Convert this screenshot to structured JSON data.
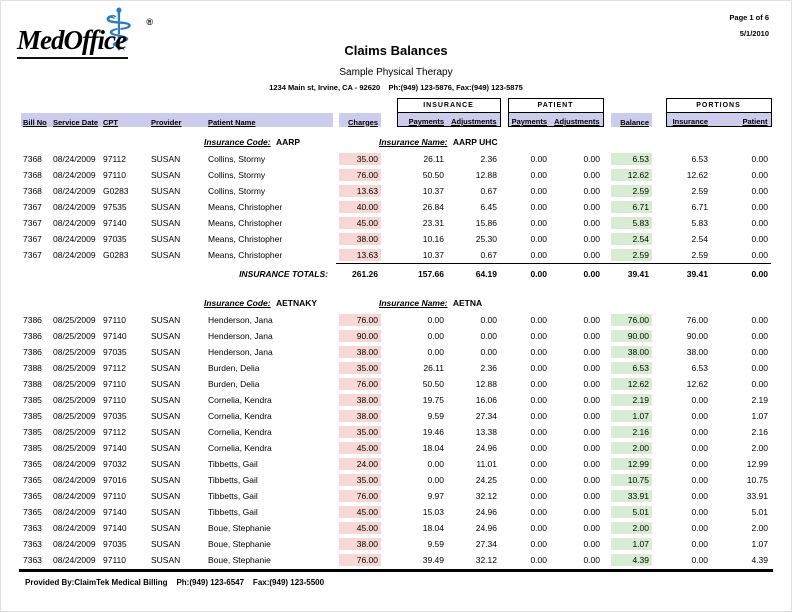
{
  "page": {
    "page_label": "Page 1 of 6",
    "date": "5/1/2010"
  },
  "header": {
    "logo_text": "MedOffice",
    "logo_reg": "®",
    "title": "Claims Balances",
    "practice": "Sample Physical Therapy",
    "address": "1234 Main st, Irvine, CA - 92620    Ph:(949) 123-5876, Fax:(949) 123-5875"
  },
  "table": {
    "groups": {
      "insurance": "INSURANCE",
      "patient": "PATIENT",
      "portions": "PORTIONS"
    },
    "columns": {
      "bill": "Bill No",
      "date": "Service Date",
      "cpt": "CPT",
      "provider": "Provider",
      "patient": "Patient Name",
      "charges": "Charges",
      "ins_pay": "Payments",
      "ins_adj": "Adjustments",
      "pat_pay": "Payments",
      "pat_adj": "Adjustments",
      "balance": "Balance",
      "ins_portion": "Insurance",
      "pat_portion": "Patient"
    },
    "sections": [
      {
        "code_label": "Insurance Code:",
        "code": "AARP",
        "name_label": "Insurance Name:",
        "name": "AARP UHC",
        "rows": [
          {
            "bill": "7368",
            "date": "08/24/2009",
            "cpt": "97112",
            "provider": "SUSAN",
            "patient": "Collins, Stormy",
            "charges": "35.00",
            "ins_pay": "26.11",
            "ins_adj": "2.36",
            "pat_pay": "0.00",
            "pat_adj": "0.00",
            "balance": "6.53",
            "ins_portion": "6.53",
            "pat_portion": "0.00"
          },
          {
            "bill": "7368",
            "date": "08/24/2009",
            "cpt": "97110",
            "provider": "SUSAN",
            "patient": "Collins, Stormy",
            "charges": "76.00",
            "ins_pay": "50.50",
            "ins_adj": "12.88",
            "pat_pay": "0.00",
            "pat_adj": "0.00",
            "balance": "12.62",
            "ins_portion": "12.62",
            "pat_portion": "0.00"
          },
          {
            "bill": "7368",
            "date": "08/24/2009",
            "cpt": "G0283",
            "provider": "SUSAN",
            "patient": "Collins, Stormy",
            "charges": "13.63",
            "ins_pay": "10.37",
            "ins_adj": "0.67",
            "pat_pay": "0.00",
            "pat_adj": "0.00",
            "balance": "2.59",
            "ins_portion": "2.59",
            "pat_portion": "0.00"
          },
          {
            "bill": "7367",
            "date": "08/24/2009",
            "cpt": "97535",
            "provider": "SUSAN",
            "patient": "Means, Christopher",
            "charges": "40.00",
            "ins_pay": "26.84",
            "ins_adj": "6.45",
            "pat_pay": "0.00",
            "pat_adj": "0.00",
            "balance": "6.71",
            "ins_portion": "6.71",
            "pat_portion": "0.00"
          },
          {
            "bill": "7367",
            "date": "08/24/2009",
            "cpt": "97140",
            "provider": "SUSAN",
            "patient": "Means, Christopher",
            "charges": "45.00",
            "ins_pay": "23.31",
            "ins_adj": "15.86",
            "pat_pay": "0.00",
            "pat_adj": "0.00",
            "balance": "5.83",
            "ins_portion": "5.83",
            "pat_portion": "0.00"
          },
          {
            "bill": "7367",
            "date": "08/24/2009",
            "cpt": "97035",
            "provider": "SUSAN",
            "patient": "Means, Christopher",
            "charges": "38.00",
            "ins_pay": "10.16",
            "ins_adj": "25.30",
            "pat_pay": "0.00",
            "pat_adj": "0.00",
            "balance": "2.54",
            "ins_portion": "2.54",
            "pat_portion": "0.00"
          },
          {
            "bill": "7367",
            "date": "08/24/2009",
            "cpt": "G0283",
            "provider": "SUSAN",
            "patient": "Means, Christopher",
            "charges": "13.63",
            "ins_pay": "10.37",
            "ins_adj": "0.67",
            "pat_pay": "0.00",
            "pat_adj": "0.00",
            "balance": "2.59",
            "ins_portion": "2.59",
            "pat_portion": "0.00"
          }
        ],
        "totals_label": "INSURANCE TOTALS:",
        "totals": {
          "charges": "261.26",
          "ins_pay": "157.66",
          "ins_adj": "64.19",
          "pat_pay": "0.00",
          "pat_adj": "0.00",
          "balance": "39.41",
          "ins_portion": "39.41",
          "pat_portion": "0.00"
        }
      },
      {
        "code_label": "Insurance Code:",
        "code": "AETNAKY",
        "name_label": "Insurance Name:",
        "name": "AETNA",
        "rows": [
          {
            "bill": "7386",
            "date": "08/25/2009",
            "cpt": "97110",
            "provider": "SUSAN",
            "patient": "Henderson, Jana",
            "charges": "76.00",
            "ins_pay": "0.00",
            "ins_adj": "0.00",
            "pat_pay": "0.00",
            "pat_adj": "0.00",
            "balance": "76.00",
            "ins_portion": "76.00",
            "pat_portion": "0.00"
          },
          {
            "bill": "7386",
            "date": "08/25/2009",
            "cpt": "97140",
            "provider": "SUSAN",
            "patient": "Henderson, Jana",
            "charges": "90.00",
            "ins_pay": "0.00",
            "ins_adj": "0.00",
            "pat_pay": "0.00",
            "pat_adj": "0.00",
            "balance": "90.00",
            "ins_portion": "90.00",
            "pat_portion": "0.00"
          },
          {
            "bill": "7386",
            "date": "08/25/2009",
            "cpt": "97035",
            "provider": "SUSAN",
            "patient": "Henderson, Jana",
            "charges": "38.00",
            "ins_pay": "0.00",
            "ins_adj": "0.00",
            "pat_pay": "0.00",
            "pat_adj": "0.00",
            "balance": "38.00",
            "ins_portion": "38.00",
            "pat_portion": "0.00"
          },
          {
            "bill": "7388",
            "date": "08/25/2009",
            "cpt": "97112",
            "provider": "SUSAN",
            "patient": "Burden, Delia",
            "charges": "35.00",
            "ins_pay": "26.11",
            "ins_adj": "2.36",
            "pat_pay": "0.00",
            "pat_adj": "0.00",
            "balance": "6.53",
            "ins_portion": "6.53",
            "pat_portion": "0.00"
          },
          {
            "bill": "7388",
            "date": "08/25/2009",
            "cpt": "97110",
            "provider": "SUSAN",
            "patient": "Burden, Delia",
            "charges": "76.00",
            "ins_pay": "50.50",
            "ins_adj": "12.88",
            "pat_pay": "0.00",
            "pat_adj": "0.00",
            "balance": "12.62",
            "ins_portion": "12.62",
            "pat_portion": "0.00"
          },
          {
            "bill": "7385",
            "date": "08/25/2009",
            "cpt": "97110",
            "provider": "SUSAN",
            "patient": "Cornelia, Kendra",
            "charges": "38.00",
            "ins_pay": "19.75",
            "ins_adj": "16.06",
            "pat_pay": "0.00",
            "pat_adj": "0.00",
            "balance": "2.19",
            "ins_portion": "0.00",
            "pat_portion": "2.19"
          },
          {
            "bill": "7385",
            "date": "08/25/2009",
            "cpt": "97035",
            "provider": "SUSAN",
            "patient": "Cornelia, Kendra",
            "charges": "38.00",
            "ins_pay": "9.59",
            "ins_adj": "27.34",
            "pat_pay": "0.00",
            "pat_adj": "0.00",
            "balance": "1.07",
            "ins_portion": "0.00",
            "pat_portion": "1.07"
          },
          {
            "bill": "7385",
            "date": "08/25/2009",
            "cpt": "97112",
            "provider": "SUSAN",
            "patient": "Cornelia, Kendra",
            "charges": "35.00",
            "ins_pay": "19.46",
            "ins_adj": "13.38",
            "pat_pay": "0.00",
            "pat_adj": "0.00",
            "balance": "2.16",
            "ins_portion": "0.00",
            "pat_portion": "2.16"
          },
          {
            "bill": "7385",
            "date": "08/25/2009",
            "cpt": "97140",
            "provider": "SUSAN",
            "patient": "Cornelia, Kendra",
            "charges": "45.00",
            "ins_pay": "18.04",
            "ins_adj": "24.96",
            "pat_pay": "0.00",
            "pat_adj": "0.00",
            "balance": "2.00",
            "ins_portion": "0.00",
            "pat_portion": "2.00"
          },
          {
            "bill": "7365",
            "date": "08/24/2009",
            "cpt": "97032",
            "provider": "SUSAN",
            "patient": "Tibbetts, Gail",
            "charges": "24.00",
            "ins_pay": "0.00",
            "ins_adj": "11.01",
            "pat_pay": "0.00",
            "pat_adj": "0.00",
            "balance": "12.99",
            "ins_portion": "0.00",
            "pat_portion": "12.99"
          },
          {
            "bill": "7365",
            "date": "08/24/2009",
            "cpt": "97016",
            "provider": "SUSAN",
            "patient": "Tibbetts, Gail",
            "charges": "35.00",
            "ins_pay": "0.00",
            "ins_adj": "24.25",
            "pat_pay": "0.00",
            "pat_adj": "0.00",
            "balance": "10.75",
            "ins_portion": "0.00",
            "pat_portion": "10.75"
          },
          {
            "bill": "7365",
            "date": "08/24/2009",
            "cpt": "97110",
            "provider": "SUSAN",
            "patient": "Tibbetts, Gail",
            "charges": "76.00",
            "ins_pay": "9.97",
            "ins_adj": "32.12",
            "pat_pay": "0.00",
            "pat_adj": "0.00",
            "balance": "33.91",
            "ins_portion": "0.00",
            "pat_portion": "33.91"
          },
          {
            "bill": "7365",
            "date": "08/24/2009",
            "cpt": "97140",
            "provider": "SUSAN",
            "patient": "Tibbetts, Gail",
            "charges": "45.00",
            "ins_pay": "15.03",
            "ins_adj": "24.96",
            "pat_pay": "0.00",
            "pat_adj": "0.00",
            "balance": "5.01",
            "ins_portion": "0.00",
            "pat_portion": "5.01"
          },
          {
            "bill": "7363",
            "date": "08/24/2009",
            "cpt": "97140",
            "provider": "SUSAN",
            "patient": "Boue, Stephanie",
            "charges": "45.00",
            "ins_pay": "18.04",
            "ins_adj": "24.96",
            "pat_pay": "0.00",
            "pat_adj": "0.00",
            "balance": "2.00",
            "ins_portion": "0.00",
            "pat_portion": "2.00"
          },
          {
            "bill": "7363",
            "date": "08/24/2009",
            "cpt": "97035",
            "provider": "SUSAN",
            "patient": "Boue, Stephanie",
            "charges": "38.00",
            "ins_pay": "9.59",
            "ins_adj": "27.34",
            "pat_pay": "0.00",
            "pat_adj": "0.00",
            "balance": "1.07",
            "ins_portion": "0.00",
            "pat_portion": "1.07"
          },
          {
            "bill": "7363",
            "date": "08/24/2009",
            "cpt": "97110",
            "provider": "SUSAN",
            "patient": "Boue, Stephanie",
            "charges": "76.00",
            "ins_pay": "39.49",
            "ins_adj": "32.12",
            "pat_pay": "0.00",
            "pat_adj": "0.00",
            "balance": "4.39",
            "ins_portion": "0.00",
            "pat_portion": "4.39"
          }
        ]
      }
    ]
  },
  "footer": {
    "text": "Provided By:ClaimTek Medical Billing    Ph:(949) 123-6547    Fax:(949) 123-5500"
  },
  "colors": {
    "header_strip": "#ccccec",
    "charge_cell": "#f8d7d5",
    "balance_cell": "#d7edd1",
    "logo_blue": "#2e7cc0"
  }
}
